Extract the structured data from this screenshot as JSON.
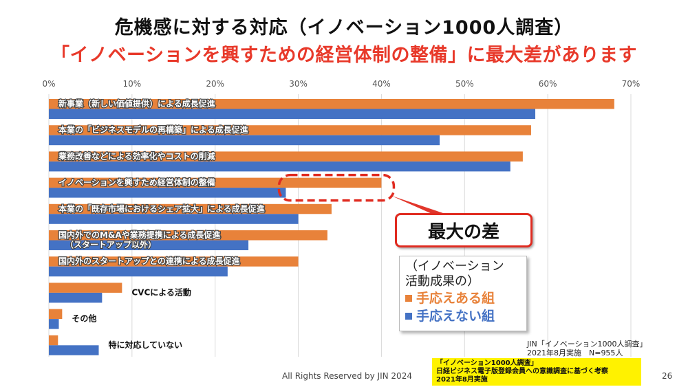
{
  "title": "危機感に対する対応（イノベーション1000人調査）",
  "subtitle": "「イノベーションを興すための経営体制の整備」に最大差があります",
  "callout": "最大の差",
  "legend": {
    "title_line1": "（イノベーション",
    "title_line2": "活動成果の）",
    "items": [
      "手応えある組",
      "手応えない組"
    ]
  },
  "source": {
    "line1": "JIN「イノベーション1000人調査」",
    "line2": "2021年8月実施　N=955人"
  },
  "note": {
    "line1": "「イノベーション1000人調査」",
    "line2": "日経ビジネス電子版登録会員への意識調査に基づく考察",
    "line3": "2021年8月実施"
  },
  "footer": "All Rights Reserved by JIN 2024",
  "page_number": "26",
  "colors": {
    "orange": "#e8823a",
    "blue": "#4472c4",
    "red": "#e02b20"
  },
  "chart_data": {
    "type": "bar",
    "orientation": "horizontal",
    "xlim": [
      0,
      70
    ],
    "ticks": [
      "0%",
      "10%",
      "20%",
      "30%",
      "40%",
      "50%",
      "60%",
      "70%"
    ],
    "grid": true,
    "categories": [
      [
        "新事業（新しい価値提供）による成長促進"
      ],
      [
        "本業の「ビジネスモデルの再構築」による成長促進"
      ],
      [
        "業務改善などによる効率化やコストの削減"
      ],
      [
        "イノベーションを興すため経営体制の整備"
      ],
      [
        "本業の「既存市場におけるシェア拡大」による成長促進"
      ],
      [
        "国内外でのM&Aや業務提携による成長促進",
        "（スタートアップ以外）"
      ],
      [
        "国内外のスタートアップとの連携による成長促進"
      ],
      [
        "CVCによる活動"
      ],
      [
        "その他"
      ],
      [
        "特に対応していない"
      ]
    ],
    "series": [
      {
        "name": "手応えある組",
        "values": [
          68,
          58,
          57,
          40,
          34,
          33.5,
          30,
          8.8,
          1.6,
          1.1
        ]
      },
      {
        "name": "手応えない組",
        "values": [
          58.5,
          47,
          55.5,
          28.5,
          30,
          24,
          21.5,
          6.4,
          1.2,
          6
        ]
      }
    ],
    "highlight_category_index": 3
  }
}
